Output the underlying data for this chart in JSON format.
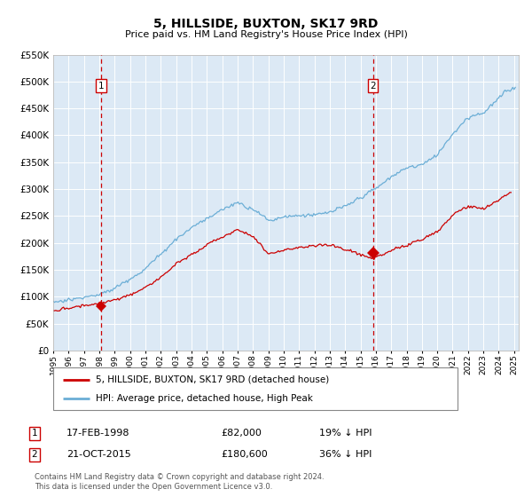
{
  "title": "5, HILLSIDE, BUXTON, SK17 9RD",
  "subtitle": "Price paid vs. HM Land Registry's House Price Index (HPI)",
  "legend_line1": "5, HILLSIDE, BUXTON, SK17 9RD (detached house)",
  "legend_line2": "HPI: Average price, detached house, High Peak",
  "sale1_date": 1998.12,
  "sale1_price": 82000,
  "sale1_text": "17-FEB-1998",
  "sale1_amount": "£82,000",
  "sale1_hpi": "19% ↓ HPI",
  "sale2_date": 2015.81,
  "sale2_price": 180600,
  "sale2_text": "21-OCT-2015",
  "sale2_amount": "£180,600",
  "sale2_hpi": "36% ↓ HPI",
  "footer": "Contains HM Land Registry data © Crown copyright and database right 2024.\nThis data is licensed under the Open Government Licence v3.0.",
  "ylim": [
    0,
    550000
  ],
  "yticks": [
    0,
    50000,
    100000,
    150000,
    200000,
    250000,
    300000,
    350000,
    400000,
    450000,
    500000,
    550000
  ],
  "ytick_labels": [
    "£0",
    "£50K",
    "£100K",
    "£150K",
    "£200K",
    "£250K",
    "£300K",
    "£350K",
    "£400K",
    "£450K",
    "£500K",
    "£550K"
  ],
  "hpi_color": "#6baed6",
  "price_color": "#cc0000",
  "bg_color": "#dce9f5",
  "dashed_line_color": "#cc0000",
  "box_color": "#cc0000",
  "xlim_start": 1995,
  "xlim_end": 2025.3
}
